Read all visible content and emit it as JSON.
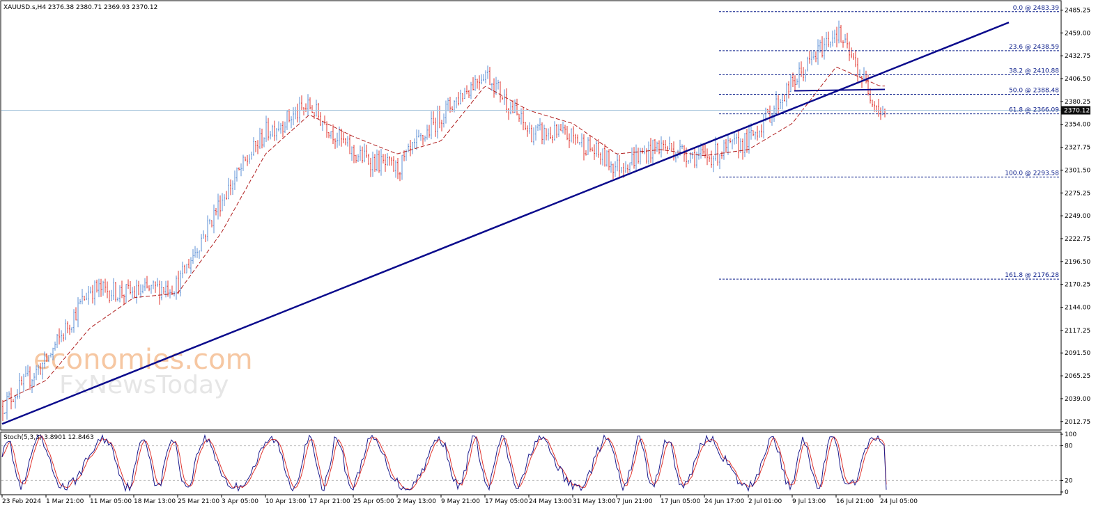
{
  "header": {
    "ohlc_title": "XAUUSD.s,H4  2376.38 2380.71 2369.93 2370.12"
  },
  "watermark": {
    "line1": "economies.com",
    "line2": "FxNewsToday"
  },
  "price_axis": {
    "ticks": [
      "2485.25",
      "2459.00",
      "2432.75",
      "2406.50",
      "2380.25",
      "2354.00",
      "2327.75",
      "2301.50",
      "2275.25",
      "2249.00",
      "2222.75",
      "2196.50",
      "2170.25",
      "2144.00",
      "2117.25",
      "2091.50",
      "2065.25",
      "2039.00",
      "2012.75"
    ],
    "current_price": "2370.12"
  },
  "time_axis": {
    "ticks": [
      "23 Feb 2024",
      "1 Mar 21:00",
      "11 Mar 05:00",
      "18 Mar 13:00",
      "25 Mar 21:00",
      "3 Apr 05:00",
      "10 Apr 13:00",
      "17 Apr 21:00",
      "25 Apr 05:00",
      "2 May 13:00",
      "9 May 21:00",
      "17 May 05:00",
      "24 May 13:00",
      "31 May 13:00",
      "7 Jun 21:00",
      "17 Jun 05:00",
      "24 Jun 17:00",
      "2 Jul 01:00",
      "9 Jul 13:00",
      "16 Jul 21:00",
      "24 Jul 05:00"
    ]
  },
  "fibonacci": [
    {
      "label": "0.0 @ 2483.39"
    },
    {
      "label": "23.6 @ 2438.59"
    },
    {
      "label": "38.2 @ 2410.88"
    },
    {
      "label": "50.0 @ 2388.48"
    },
    {
      "label": "61.8 @ 2366.09"
    },
    {
      "label": "100.0 @ 2293.58"
    },
    {
      "label": "161.8 @ 2176.28"
    }
  ],
  "stochastic": {
    "title": "Stoch(5,3,3) 3.8901 12.8463",
    "ticks": [
      "100",
      "80",
      "20",
      "0"
    ]
  },
  "colors": {
    "bull_bar": "#5b8fd6",
    "bear_bar": "#e0352f",
    "ma_line": "#b01d1d",
    "trendline": "#0a0a8c",
    "fib_line": "#0b1e8a",
    "stoch_main": "#1a1a8c",
    "stoch_signal": "#e0352f",
    "current_price_bg": "#0d0d0d"
  },
  "chart_data": {
    "type": "candlestick-ohlc",
    "symbol": "XAUUSD.s",
    "timeframe": "H4",
    "ylim": [
      2007.0,
      2492.0
    ],
    "price_anchors": {
      "x": [
        "23 Feb 2024",
        "1 Mar 21:00",
        "11 Mar 05:00",
        "18 Mar 13:00",
        "25 Mar 21:00",
        "3 Apr 05:00",
        "10 Apr 13:00",
        "17 Apr 21:00",
        "25 Apr 05:00",
        "2 May 13:00",
        "9 May 21:00",
        "17 May 05:00",
        "24 May 13:00",
        "31 May 13:00",
        "7 Jun 21:00",
        "17 Jun 05:00",
        "24 Jun 17:00",
        "2 Jul 01:00",
        "9 Jul 13:00",
        "16 Jul 21:00",
        "24 Jul 05:00"
      ],
      "close": [
        2030,
        2082,
        2165,
        2160,
        2170,
        2268,
        2345,
        2375,
        2320,
        2302,
        2365,
        2415,
        2345,
        2340,
        2305,
        2330,
        2315,
        2335,
        2400,
        2462,
        2370
      ]
    },
    "ma_anchors": {
      "x": [
        "23 Feb 2024",
        "1 Mar 21:00",
        "11 Mar 05:00",
        "18 Mar 13:00",
        "25 Mar 21:00",
        "3 Apr 05:00",
        "10 Apr 13:00",
        "17 Apr 21:00",
        "25 Apr 05:00",
        "2 May 13:00",
        "9 May 21:00",
        "17 May 05:00",
        "24 May 13:00",
        "31 May 13:00",
        "7 Jun 21:00",
        "17 Jun 05:00",
        "24 Jun 17:00",
        "2 Jul 01:00",
        "9 Jul 13:00",
        "16 Jul 21:00",
        "24 Jul 05:00"
      ],
      "value": [
        2035,
        2060,
        2120,
        2155,
        2160,
        2230,
        2320,
        2365,
        2340,
        2320,
        2335,
        2398,
        2370,
        2355,
        2320,
        2325,
        2318,
        2325,
        2355,
        2420,
        2398
      ]
    },
    "trendline": {
      "from": {
        "x": "23 Feb 2024",
        "y": 2010
      },
      "to": {
        "x": "24 Jul 05:00",
        "y": 2412
      }
    },
    "support_line": {
      "level": 2392.5
    },
    "fib_levels": [
      2483.39,
      2438.59,
      2410.88,
      2388.48,
      2366.09,
      2293.58,
      2176.28
    ],
    "last_close": 2370.12,
    "stochastic": {
      "k_period": 5,
      "d_period": 3,
      "slowing": 3,
      "main": 3.8901,
      "signal": 12.8463,
      "ylim": [
        0,
        100
      ],
      "levels": [
        20,
        80
      ]
    }
  }
}
